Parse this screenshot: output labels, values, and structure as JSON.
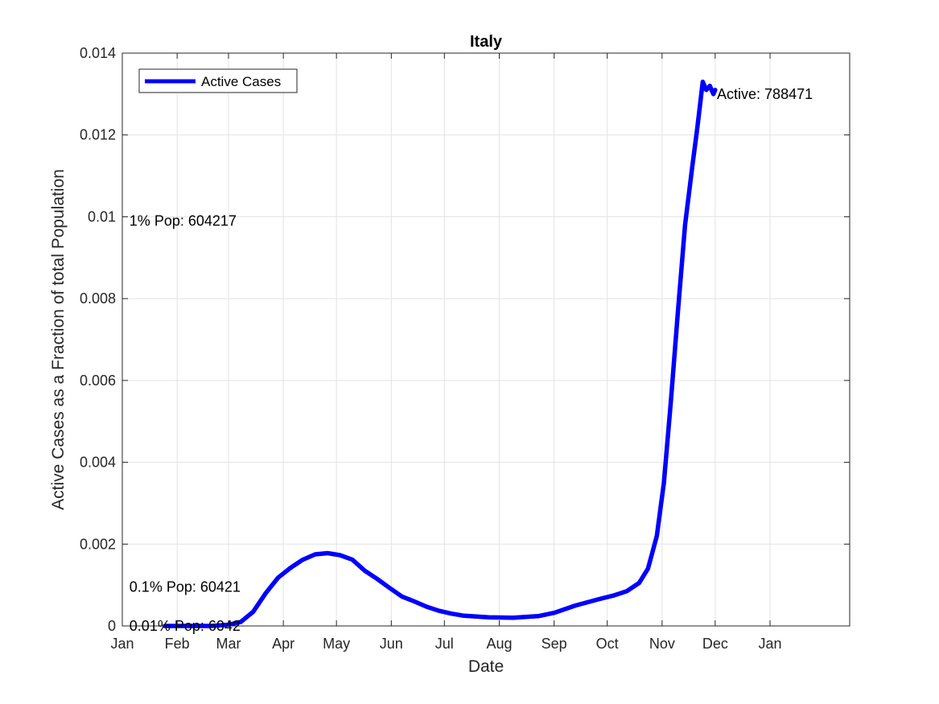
{
  "chart_data": {
    "type": "line",
    "title": "Italy",
    "xlabel": "Date",
    "ylabel": "Active Cases as a Fraction of total Population",
    "x_tick_labels": [
      "Jan",
      "Feb",
      "Mar",
      "Apr",
      "May",
      "Jun",
      "Jul",
      "Aug",
      "Sep",
      "Oct",
      "Nov",
      "Dec",
      "Jan"
    ],
    "y_tick_labels": [
      "0",
      "0.002",
      "0.004",
      "0.006",
      "0.008",
      "0.01",
      "0.012",
      "0.014"
    ],
    "xlim": [
      "2020-01-01",
      "2021-02-15"
    ],
    "ylim": [
      0,
      0.014
    ],
    "grid": true,
    "legend": {
      "position": "top-left",
      "entries": [
        "Active Cases"
      ]
    },
    "series": [
      {
        "name": "Active Cases",
        "color": "#0000ff",
        "points": [
          [
            "2020-01-25",
            0
          ],
          [
            "2020-02-20",
            0
          ],
          [
            "2020-03-01",
            3e-05
          ],
          [
            "2020-03-08",
            0.0001
          ],
          [
            "2020-03-15",
            0.00035
          ],
          [
            "2020-03-22",
            0.0008
          ],
          [
            "2020-03-29",
            0.00118
          ],
          [
            "2020-04-05",
            0.00142
          ],
          [
            "2020-04-12",
            0.00162
          ],
          [
            "2020-04-19",
            0.00175
          ],
          [
            "2020-04-26",
            0.00178
          ],
          [
            "2020-05-03",
            0.00173
          ],
          [
            "2020-05-10",
            0.00162
          ],
          [
            "2020-05-17",
            0.00135
          ],
          [
            "2020-05-24",
            0.00115
          ],
          [
            "2020-05-31",
            0.00093
          ],
          [
            "2020-06-07",
            0.00072
          ],
          [
            "2020-06-14",
            0.0006
          ],
          [
            "2020-06-21",
            0.00047
          ],
          [
            "2020-06-28",
            0.00037
          ],
          [
            "2020-07-05",
            0.0003
          ],
          [
            "2020-07-12",
            0.00025
          ],
          [
            "2020-07-26",
            0.00021
          ],
          [
            "2020-08-09",
            0.0002
          ],
          [
            "2020-08-23",
            0.00024
          ],
          [
            "2020-09-01",
            0.00032
          ],
          [
            "2020-09-13",
            0.0005
          ],
          [
            "2020-09-26",
            0.00065
          ],
          [
            "2020-10-05",
            0.00075
          ],
          [
            "2020-10-12",
            0.00085
          ],
          [
            "2020-10-19",
            0.00105
          ],
          [
            "2020-10-24",
            0.0014
          ],
          [
            "2020-10-29",
            0.0022
          ],
          [
            "2020-11-02",
            0.0035
          ],
          [
            "2020-11-06",
            0.0055
          ],
          [
            "2020-11-10",
            0.0077
          ],
          [
            "2020-11-14",
            0.0098
          ],
          [
            "2020-11-18",
            0.0112
          ],
          [
            "2020-11-21",
            0.0122
          ],
          [
            "2020-11-24",
            0.0133
          ],
          [
            "2020-11-26",
            0.0131
          ],
          [
            "2020-11-28",
            0.0132
          ],
          [
            "2020-11-30",
            0.013
          ],
          [
            "2020-12-01",
            0.0131
          ]
        ]
      }
    ],
    "annotations": [
      {
        "text": "Active: 788471",
        "x": "2020-12-02",
        "y": 0.013
      },
      {
        "text": "1% Pop: 604217",
        "x": "2020-01-05",
        "y": 0.0099
      },
      {
        "text": "0.1% Pop: 60421",
        "x": "2020-01-05",
        "y": 0.00095
      },
      {
        "text": "0.01% Pop: 6042",
        "x": "2020-01-05",
        "y": 0
      }
    ]
  }
}
